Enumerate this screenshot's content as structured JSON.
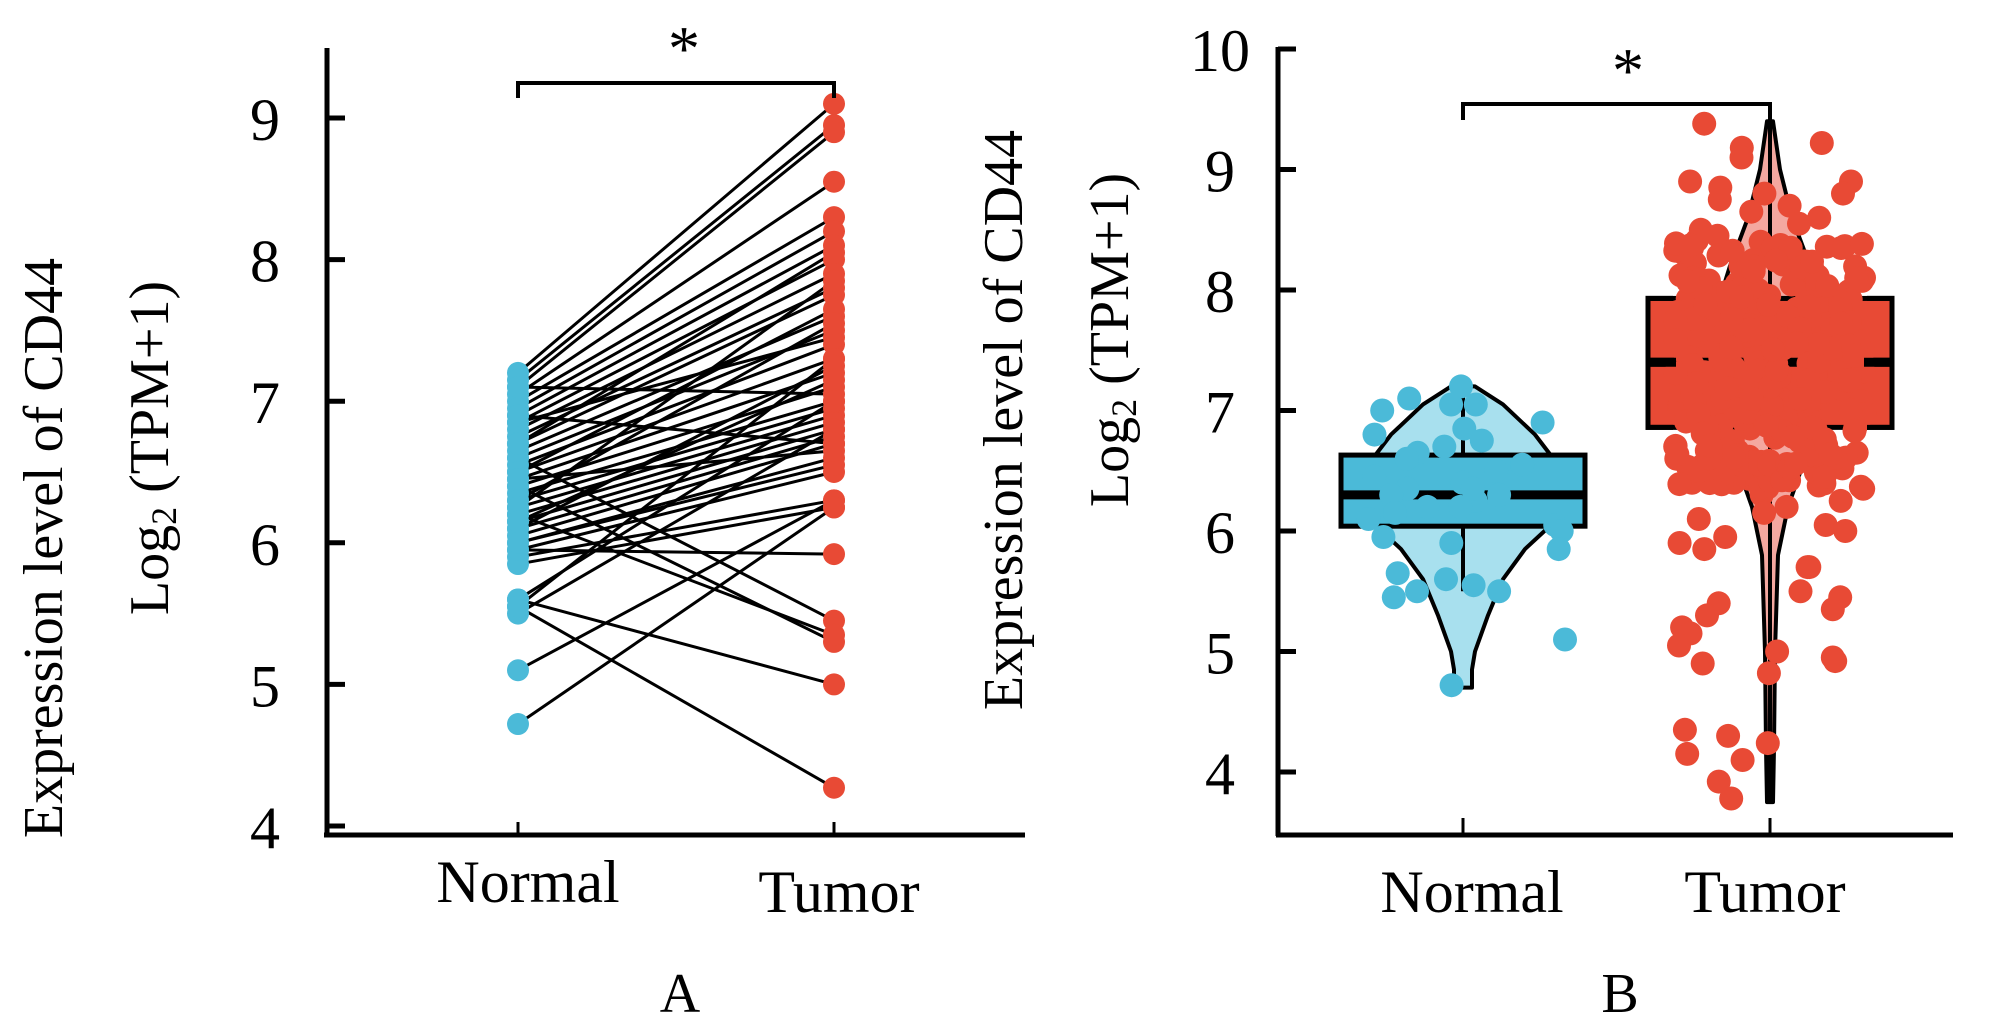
{
  "figure": {
    "panels": [
      "A",
      "B"
    ]
  },
  "chart_data": [
    {
      "id": "A",
      "type": "scatter",
      "subtype": "paired-dot-line",
      "panel_label": "A",
      "title": "",
      "xlabel": "",
      "ylabel_line1": "Expression level of CD44",
      "ylabel_line2_prefix": "Log",
      "ylabel_line2_sub": "2",
      "ylabel_line2_suffix": " (TPM+1)",
      "categories": [
        "Normal",
        "Tumor"
      ],
      "ylim": [
        4,
        9.4
      ],
      "yticks": [
        4,
        5,
        6,
        7,
        8,
        9
      ],
      "grid": false,
      "significance": "*",
      "colors": {
        "Normal": "#4BBAD8",
        "Tumor": "#E84A35",
        "line": "#000000"
      },
      "pairs": [
        [
          7.2,
          9.1
        ],
        [
          7.15,
          8.95
        ],
        [
          7.1,
          8.9
        ],
        [
          7.05,
          8.55
        ],
        [
          7.0,
          8.3
        ],
        [
          6.95,
          8.2
        ],
        [
          6.9,
          8.1
        ],
        [
          6.85,
          8.0
        ],
        [
          6.8,
          7.9
        ],
        [
          6.75,
          7.8
        ],
        [
          6.7,
          7.75
        ],
        [
          6.65,
          7.6
        ],
        [
          6.6,
          7.5
        ],
        [
          6.55,
          7.4
        ],
        [
          6.5,
          7.3
        ],
        [
          6.45,
          7.2
        ],
        [
          6.4,
          7.1
        ],
        [
          6.35,
          7.0
        ],
        [
          6.3,
          6.95
        ],
        [
          6.25,
          6.9
        ],
        [
          6.2,
          6.85
        ],
        [
          6.15,
          6.8
        ],
        [
          6.1,
          6.75
        ],
        [
          6.05,
          6.7
        ],
        [
          6.0,
          6.6
        ],
        [
          5.95,
          6.5
        ],
        [
          5.9,
          6.3
        ],
        [
          5.85,
          6.25
        ],
        [
          6.6,
          5.45
        ],
        [
          6.4,
          5.3
        ],
        [
          6.2,
          5.35
        ],
        [
          5.95,
          5.92
        ],
        [
          5.6,
          7.0
        ],
        [
          5.55,
          7.3
        ],
        [
          5.5,
          6.8
        ],
        [
          5.6,
          5.0
        ],
        [
          5.55,
          4.27
        ],
        [
          5.1,
          6.3
        ],
        [
          4.72,
          6.25
        ],
        [
          6.85,
          7.45
        ],
        [
          6.7,
          8.05
        ],
        [
          6.5,
          7.65
        ],
        [
          6.3,
          7.55
        ],
        [
          6.1,
          7.25
        ],
        [
          6.0,
          6.55
        ],
        [
          7.1,
          7.05
        ],
        [
          6.9,
          6.7
        ],
        [
          6.45,
          6.65
        ],
        [
          6.25,
          7.85
        ],
        [
          6.15,
          7.15
        ]
      ]
    },
    {
      "id": "B",
      "type": "scatter",
      "subtype": "violin-box-jitter",
      "panel_label": "B",
      "title": "",
      "xlabel": "",
      "ylabel_line1": "Expression level of CD44",
      "ylabel_line2_prefix": "Log",
      "ylabel_line2_sub": "2",
      "ylabel_line2_suffix": " (TPM+1)",
      "categories": [
        "Normal",
        "Tumor"
      ],
      "ylim": [
        3.5,
        10
      ],
      "yticks": [
        4,
        5,
        6,
        7,
        8,
        9,
        10
      ],
      "grid": false,
      "significance": "*",
      "groups": [
        {
          "name": "Normal",
          "color": "#4BBAD8",
          "violin_fill": "#A8E0EE",
          "box": {
            "q1": 6.04,
            "median": 6.3,
            "q3": 6.63,
            "whisker_low": 5.5,
            "whisker_high": 7.2
          },
          "violin_range": [
            4.7,
            7.2
          ],
          "points": [
            7.2,
            7.05,
            7.0,
            7.1,
            7.05,
            6.85,
            6.8,
            6.9,
            6.75,
            6.7,
            6.65,
            6.55,
            6.5,
            6.45,
            6.4,
            6.35,
            6.3,
            6.3,
            6.25,
            6.2,
            6.15,
            6.1,
            6.05,
            6.0,
            5.95,
            5.9,
            5.85,
            5.65,
            5.6,
            5.55,
            5.5,
            5.5,
            5.45,
            5.1,
            4.72,
            6.6,
            6.35,
            6.2
          ]
        },
        {
          "name": "Tumor",
          "color": "#E84A35",
          "violin_fill": "#F4A8A0",
          "box": {
            "q1": 6.86,
            "median": 7.4,
            "q3": 7.93,
            "whisker_low": 3.75,
            "whisker_high": 9.4
          },
          "violin_range": [
            3.75,
            9.4
          ],
          "points": [
            9.38,
            9.22,
            9.18,
            9.1,
            8.9,
            8.9,
            8.85,
            8.8,
            8.8,
            8.75,
            8.7,
            8.65,
            8.6,
            8.55,
            8.5,
            8.45,
            8.4,
            8.35,
            8.3,
            8.25,
            8.2,
            8.15,
            8.1,
            8.05,
            8.0,
            7.95,
            7.9,
            7.85,
            7.8,
            7.75,
            7.7,
            7.65,
            7.6,
            7.55,
            7.5,
            7.45,
            7.4,
            7.35,
            7.3,
            7.25,
            7.2,
            7.15,
            7.1,
            7.05,
            7.0,
            6.95,
            6.9,
            6.85,
            6.8,
            6.75,
            6.7,
            6.65,
            6.6,
            6.55,
            6.5,
            6.45,
            6.4,
            6.35,
            6.3,
            6.25,
            6.2,
            6.15,
            6.1,
            6.05,
            6.0,
            5.95,
            5.9,
            5.85,
            5.7,
            5.7,
            5.5,
            5.45,
            5.4,
            5.35,
            5.3,
            5.2,
            5.15,
            5.05,
            5.0,
            4.95,
            4.92,
            4.9,
            4.82,
            4.35,
            4.3,
            4.24,
            4.15,
            4.1,
            3.92,
            3.78
          ]
        }
      ]
    }
  ]
}
